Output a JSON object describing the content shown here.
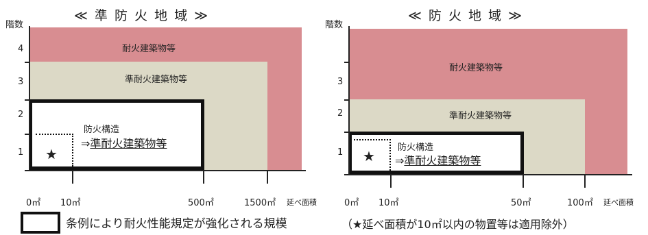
{
  "colors": {
    "fireproof": "#d88d91",
    "quasi": "#dcd9c6",
    "axis": "#222222",
    "box": "#111111"
  },
  "left": {
    "title": "≪ 準 防 火 地 域 ≫",
    "y_axis_label": "階数",
    "y_ticks": [
      "1",
      "2",
      "3",
      "4"
    ],
    "x_ticks": [
      "0㎡",
      "10㎡",
      "500㎡",
      "1500㎡"
    ],
    "x_unit": "延べ面積",
    "zone_fireproof": "耐火建築物等",
    "zone_quasi": "準耐火建築物等",
    "box_line1": "防火構造",
    "box_line2_prefix": "⇒",
    "box_line2": "準耐火建築物等",
    "star": "★"
  },
  "right": {
    "title": "≪ 防 火 地 域 ≫",
    "y_axis_label": "階数",
    "y_ticks": [
      "1",
      "2",
      "3"
    ],
    "x_ticks": [
      "0㎡",
      "10㎡",
      "50㎡",
      "100㎡"
    ],
    "x_unit": "延べ面積",
    "zone_fireproof": "耐火建築物等",
    "zone_quasi": "準耐火建築物等",
    "box_line1": "防火構造",
    "box_line2_prefix": "⇒",
    "box_line2": "準耐火建築物等",
    "star": "★"
  },
  "legend": {
    "text": "条例により耐火性能規定が強化される規模",
    "note": "（★延べ面積が10㎡以内の物置等は適用除外）"
  }
}
